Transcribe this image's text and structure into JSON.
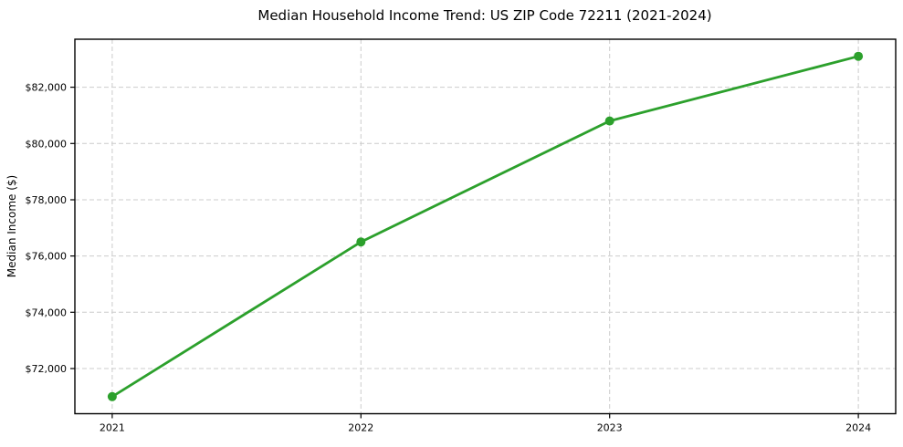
{
  "chart_data": {
    "type": "line",
    "title": "Median Household Income Trend: US ZIP Code 72211 (2021-2024)",
    "xlabel": "",
    "ylabel": "Median Income ($)",
    "categories": [
      "2021",
      "2022",
      "2023",
      "2024"
    ],
    "x": [
      2021,
      2022,
      2023,
      2024
    ],
    "series": [
      {
        "name": "Median Household Income",
        "values": [
          71000,
          76500,
          80800,
          83100
        ]
      }
    ],
    "y_ticks": [
      72000,
      74000,
      76000,
      78000,
      80000,
      82000
    ],
    "y_tick_labels": [
      "$72,000",
      "$74,000",
      "$76,000",
      "$78,000",
      "$80,000",
      "$82,000"
    ],
    "ylim": [
      70395,
      83705
    ],
    "xlim": [
      2020.85,
      2024.15
    ],
    "grid": true,
    "legend_position": "none",
    "line_color": "#2ca02c",
    "marker_color": "#2ca02c",
    "grid_color": "#cccccc",
    "axis_color": "#000000",
    "text_color": "#000000",
    "background_color": "#ffffff"
  }
}
